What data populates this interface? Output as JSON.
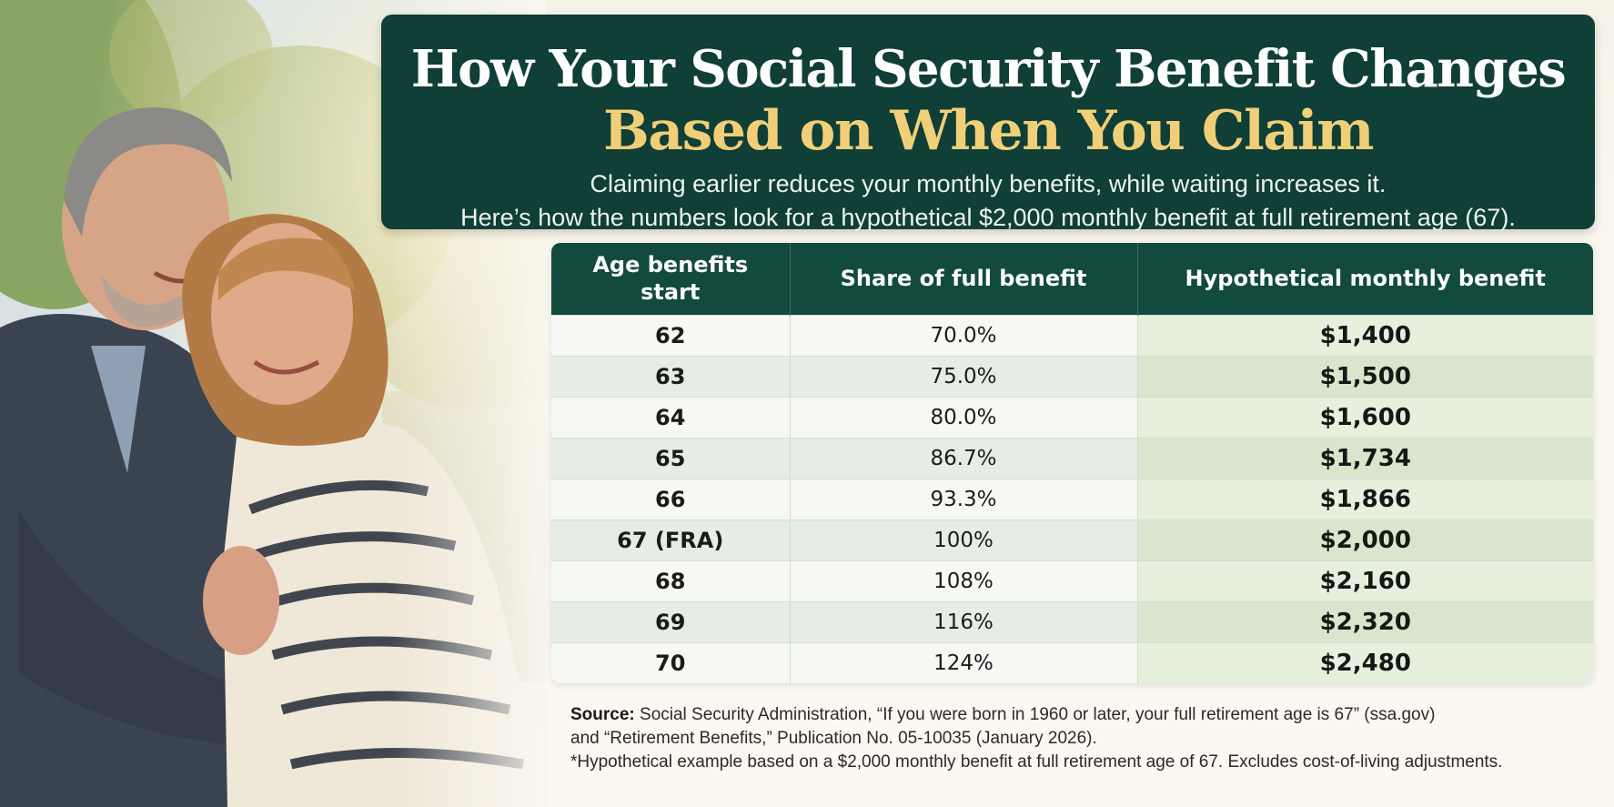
{
  "header": {
    "title_line1": "How Your Social Security Benefit Changes",
    "title_line2": "Based on When You Claim",
    "subtitle_line1": "Claiming earlier reduces your monthly benefits, while waiting increases it.",
    "subtitle_line2": "Here’s how the numbers look for a hypothetical $2,000 monthly benefit at full retirement age (67)."
  },
  "table": {
    "columns": [
      "Age benefits start",
      "Share of full benefit",
      "Hypothetical monthly benefit"
    ],
    "rows": [
      {
        "age": "62",
        "share": "70.0%",
        "benefit": "$1,400"
      },
      {
        "age": "63",
        "share": "75.0%",
        "benefit": "$1,500"
      },
      {
        "age": "64",
        "share": "80.0%",
        "benefit": "$1,600"
      },
      {
        "age": "65",
        "share": "86.7%",
        "benefit": "$1,734"
      },
      {
        "age": "66",
        "share": "93.3%",
        "benefit": "$1,866"
      },
      {
        "age": "67 (FRA)",
        "share": "100%",
        "benefit": "$2,000"
      },
      {
        "age": "68",
        "share": "108%",
        "benefit": "$2,160"
      },
      {
        "age": "69",
        "share": "116%",
        "benefit": "$2,320"
      },
      {
        "age": "70",
        "share": "124%",
        "benefit": "$2,480"
      }
    ]
  },
  "notes": {
    "source_label": "Source:",
    "source_line1": " Social Security Administration, “If you were born in 1960 or later, your full retirement age is 67” (ssa.gov)",
    "source_line2": "and “Retirement Benefits,” Publication No. 05-10035 (January 2026).",
    "footnote": "*Hypothetical example based on a $2,000 monthly benefit at full retirement age of 67. Excludes cost-of-living adjustments."
  },
  "colors": {
    "header_bg": "#0f3f36",
    "title_accent": "#f1cf78",
    "table_header_bg": "#134a3e"
  }
}
